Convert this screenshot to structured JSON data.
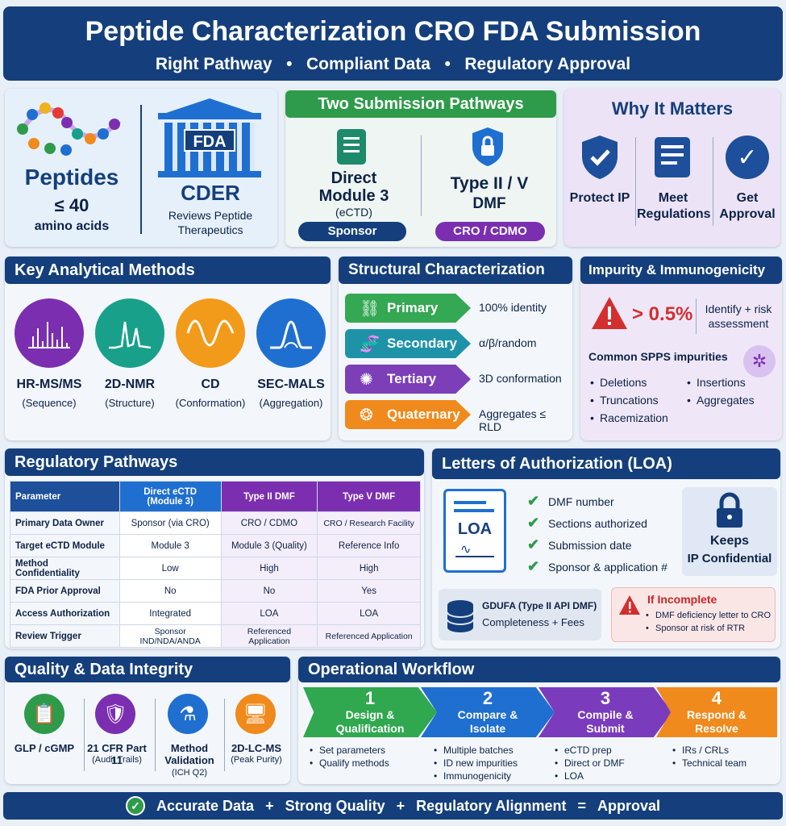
{
  "header": {
    "title": "Peptide Characterization CRO FDA Submission",
    "subtitle": [
      "Right Pathway",
      "Compliant Data",
      "Regulatory Approval"
    ],
    "bullet": "•"
  },
  "peptides": {
    "title": "Peptides",
    "limit": "≤ 40",
    "unit": "amino acids"
  },
  "fda": {
    "logo": "FDA",
    "title": "CDER",
    "desc": "Reviews Peptide Therapeutics"
  },
  "pathways": {
    "title": "Two Submission Pathways",
    "direct": {
      "line1": "Direct",
      "line2": "Module 3",
      "sub": "(eCTD)",
      "tag": "Sponsor"
    },
    "dmf": {
      "line1": "Type II / V",
      "line2": "DMF",
      "tag": "CRO / CDMO"
    }
  },
  "why": {
    "title": "Why It Matters",
    "items": [
      {
        "label": "Protect IP",
        "icon": "shield-check-icon"
      },
      {
        "label": "Meet Regulations",
        "icon": "checklist-icon"
      },
      {
        "label": "Get Approval",
        "icon": "checkmark-icon"
      }
    ]
  },
  "methods": {
    "title": "Key Analytical Methods",
    "items": [
      {
        "name": "HR-MS/MS",
        "sub": "(Sequence)",
        "color": "#7b2fb0"
      },
      {
        "name": "2D-NMR",
        "sub": "(Structure)",
        "color": "#18a08a"
      },
      {
        "name": "CD",
        "sub": "(Conformation)",
        "color": "#f29a1a"
      },
      {
        "name": "SEC-MALS",
        "sub": "(Aggregation)",
        "color": "#1f6fd0"
      }
    ]
  },
  "structural": {
    "title": "Structural Characterization",
    "levels": [
      {
        "name": "Primary",
        "desc": "100% identity",
        "color": "#34a853"
      },
      {
        "name": "Secondary",
        "desc": "α/β/random",
        "color": "#1e93a8"
      },
      {
        "name": "Tertiary",
        "desc": "3D conformation",
        "color": "#7c3fb8"
      },
      {
        "name": "Quaternary",
        "desc": "Aggregates ≤ RLD",
        "color": "#f08a1c"
      }
    ]
  },
  "impurity": {
    "title": "Impurity & Immunogenicity",
    "threshold": "> 0.5%",
    "action": "Identify + risk assessment",
    "common_title": "Common SPPS impurities",
    "list": [
      "Deletions",
      "Insertions",
      "Truncations",
      "Aggregates",
      "Racemization"
    ]
  },
  "regulatory": {
    "title": "Regulatory Pathways",
    "columns": [
      "Parameter",
      "Direct eCTD (Module 3)",
      "Type II DMF",
      "Type V DMF"
    ],
    "rows": [
      [
        "Primary Data Owner",
        "Sponsor (via CRO)",
        "CRO / CDMO",
        "CRO / Research Facility"
      ],
      [
        "Target eCTD Module",
        "Module 3",
        "Module 3 (Quality)",
        "Reference Info"
      ],
      [
        "Method Confidentiality",
        "Low",
        "High",
        "High"
      ],
      [
        "FDA Prior Approval",
        "No",
        "No",
        "Yes"
      ],
      [
        "Access Authorization",
        "Integrated",
        "LOA",
        "LOA"
      ],
      [
        "Review Trigger",
        "Sponsor IND/NDA/ANDA",
        "Referenced Application",
        "Referenced Application"
      ]
    ]
  },
  "loa": {
    "title": "Letters of Authorization (LOA)",
    "doc": "LOA",
    "checklist": [
      "DMF number",
      "Sections authorized",
      "Submission date",
      "Sponsor & application #"
    ],
    "keeps1": "Keeps",
    "keeps2": "IP Confidential",
    "gdufa1": "GDUFA (Type II API DMF)",
    "gdufa2": "Completeness + Fees",
    "incomplete": "If Incomplete",
    "incomplete_items": [
      "DMF deficiency letter to CRO",
      "Sponsor at risk of RTR"
    ]
  },
  "quality": {
    "title": "Quality & Data Integrity",
    "items": [
      {
        "name": "GLP / cGMP",
        "sub": "",
        "color": "#2e9b4a"
      },
      {
        "name": "21 CFR Part 11",
        "sub": "(Audit Trails)",
        "color": "#7b2fb0"
      },
      {
        "name": "Method Validation",
        "sub": "(ICH Q2)",
        "color": "#1f6fd0"
      },
      {
        "name": "2D-LC-MS",
        "sub": "(Peak Purity)",
        "color": "#f08a1c"
      }
    ]
  },
  "workflow": {
    "title": "Operational Workflow",
    "steps": [
      {
        "num": "1",
        "l1": "Design &",
        "l2": "Qualification",
        "bullets": [
          "Set parameters",
          "Qualify methods"
        ],
        "color": "#2fa84f"
      },
      {
        "num": "2",
        "l1": "Compare &",
        "l2": "Isolate",
        "bullets": [
          "Multiple batches",
          "ID new impurities",
          "Immunogenicity"
        ],
        "color": "#1f6fd0"
      },
      {
        "num": "3",
        "l1": "Compile &",
        "l2": "Submit",
        "bullets": [
          "eCTD prep",
          "Direct or DMF",
          "LOA"
        ],
        "color": "#7b3bbd"
      },
      {
        "num": "4",
        "l1": "Respond &",
        "l2": "Resolve",
        "bullets": [
          "IRs / CRLs",
          "Technical team"
        ],
        "color": "#f08a1c"
      }
    ]
  },
  "footer": {
    "parts": [
      "Accurate Data",
      "+",
      "Strong Quality",
      "+",
      "Regulatory Alignment",
      "=",
      "Approval"
    ]
  }
}
